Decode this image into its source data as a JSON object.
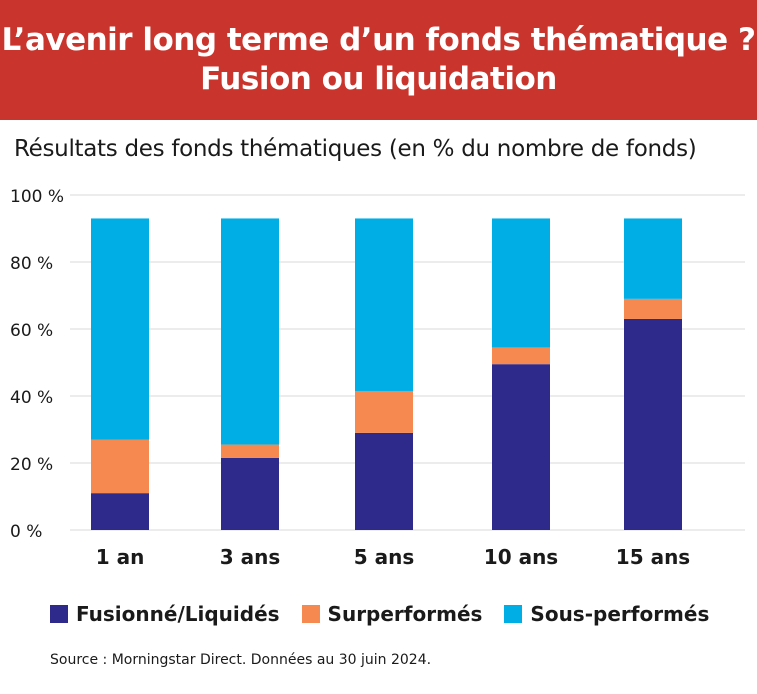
{
  "header": {
    "title_line1": "L’avenir long terme d’un fonds thématique ?",
    "title_line2": "Fusion ou liquidation"
  },
  "colors": {
    "banner": "#c9342d",
    "merged": "#2e2a8c",
    "outperformed": "#f5894f",
    "underperformed": "#00aee6",
    "grid": "#d9d9d9"
  },
  "chart_data": {
    "type": "bar",
    "stacked": true,
    "title": "Résultats des fonds thématiques (en % du nombre de fonds)",
    "categories": [
      "1 an",
      "3 ans",
      "5 ans",
      "10 ans",
      "15 ans"
    ],
    "series": [
      {
        "name": "Fusionné/Liquidés",
        "color": "#2e2a8c",
        "values": [
          11,
          21.5,
          29,
          49.5,
          63
        ]
      },
      {
        "name": "Surperformés",
        "color": "#f5894f",
        "values": [
          16,
          4,
          12.5,
          5,
          6
        ]
      },
      {
        "name": "Sous-performés",
        "color": "#00aee6",
        "values": [
          66,
          67.5,
          51.5,
          38.5,
          24
        ]
      }
    ],
    "ylim": [
      0,
      100
    ],
    "yticks": [
      0,
      20,
      40,
      60,
      80,
      100
    ],
    "ytick_labels": [
      "0 %",
      "20 %",
      "40 %",
      "60 %",
      "80 %",
      "100 %"
    ],
    "grid": true,
    "legend_position": "bottom"
  },
  "footer": {
    "source": "Source : Morningstar Direct. Données au 30 juin 2024."
  }
}
